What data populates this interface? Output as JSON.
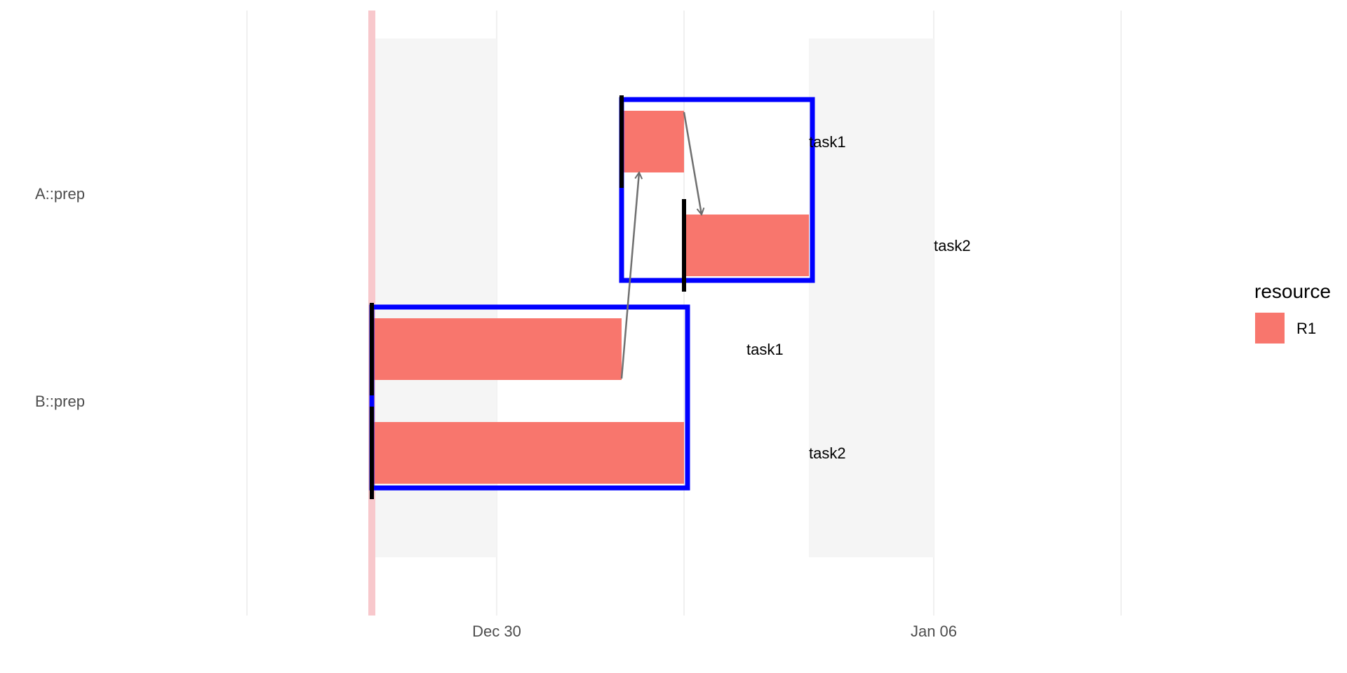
{
  "chart_data": {
    "type": "gantt",
    "x_axis": {
      "type": "date",
      "range": [
        "2024-12-25",
        "2025-01-12"
      ],
      "ticks": [
        {
          "date": "2024-12-30",
          "label": "Dec 30"
        },
        {
          "date": "2025-01-06",
          "label": "Jan 06"
        }
      ],
      "minor_gridlines": [
        "2024-12-26",
        "2025-01-02",
        "2025-01-09"
      ]
    },
    "today_marker": "2024-12-28",
    "non_working_periods": [
      {
        "start": "2024-12-28",
        "end": "2024-12-30"
      },
      {
        "start": "2025-01-04",
        "end": "2025-01-06"
      }
    ],
    "groups": [
      {
        "label": "A::prep",
        "tasks": [
          {
            "name": "task1",
            "resource": "R1",
            "start": "2025-01-01",
            "end": "2025-01-02"
          },
          {
            "name": "task2",
            "resource": "R1",
            "start": "2025-01-02",
            "end": "2025-01-04"
          }
        ]
      },
      {
        "label": "B::prep",
        "tasks": [
          {
            "name": "task1",
            "resource": "R1",
            "start": "2024-12-28",
            "end": "2025-01-01"
          },
          {
            "name": "task2",
            "resource": "R1",
            "start": "2024-12-28",
            "end": "2025-01-02"
          }
        ]
      }
    ],
    "dependencies": [
      {
        "from": "B::prep/task1",
        "to": "A::prep/task1"
      },
      {
        "from": "A::prep/task1",
        "to": "A::prep/task2"
      }
    ],
    "legend": {
      "title": "resource",
      "position": "right",
      "entries": [
        {
          "label": "R1",
          "color": "#F8766D"
        }
      ]
    },
    "colors": {
      "bar": "#F8766D",
      "group_box": "#0000FF",
      "today_line": "#F8C8CC",
      "weekend_shade": "#F5F5F5",
      "grid": "#EBEBEB",
      "dependency": "#707070"
    }
  }
}
